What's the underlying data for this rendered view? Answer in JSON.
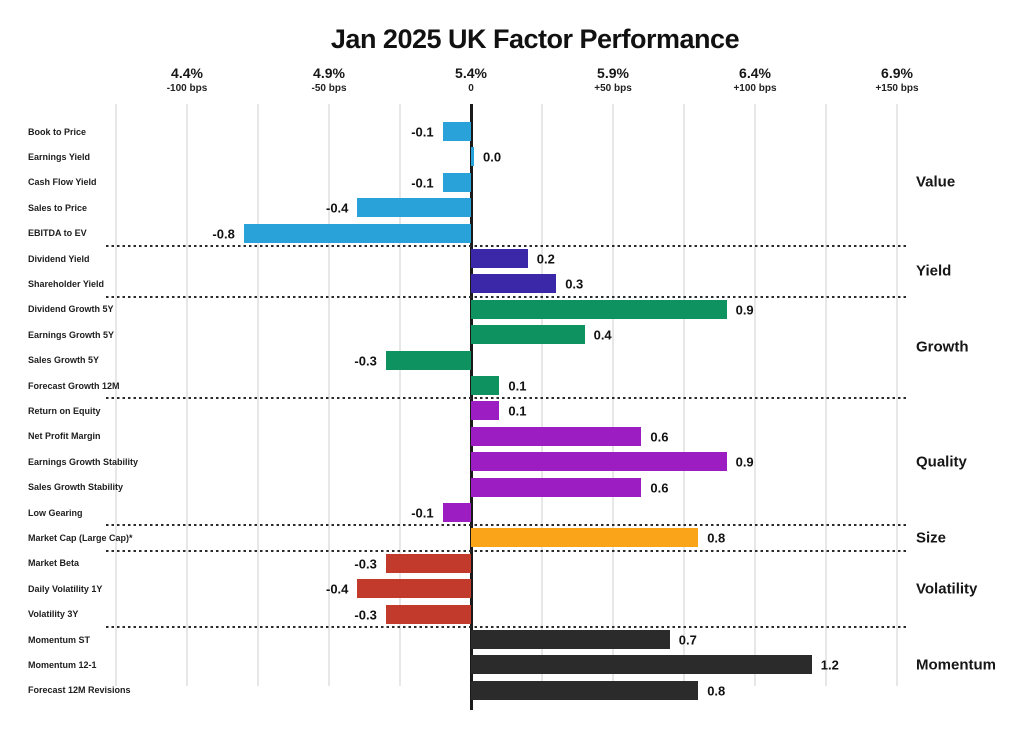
{
  "chart_data": {
    "type": "bar",
    "orientation": "horizontal",
    "title": "Jan 2025 UK Factor Performance",
    "x_axis": {
      "unit": "percent_and_bps",
      "range": [
        -1.25,
        1.75
      ],
      "minor_grid_step": 0.25,
      "grid": true,
      "ticks": [
        {
          "pct": "4.4%",
          "bps": "-100 bps",
          "value": -1.0
        },
        {
          "pct": "4.9%",
          "bps": "-50 bps",
          "value": -0.5
        },
        {
          "pct": "5.4%",
          "bps": "0",
          "value": 0.0
        },
        {
          "pct": "5.9%",
          "bps": "+50 bps",
          "value": 0.5
        },
        {
          "pct": "6.4%",
          "bps": "+100 bps",
          "value": 1.0
        },
        {
          "pct": "6.9%",
          "bps": "+150 bps",
          "value": 1.5
        }
      ]
    },
    "groups": [
      {
        "name": "Value",
        "color": "#29A2D9",
        "factors": [
          {
            "label": "Book to Price",
            "value": -0.1,
            "display": "-0.1"
          },
          {
            "label": "Earnings Yield",
            "value": 0.0,
            "display": "0.0"
          },
          {
            "label": "Cash Flow Yield",
            "value": -0.1,
            "display": "-0.1"
          },
          {
            "label": "Sales to Price",
            "value": -0.4,
            "display": "-0.4"
          },
          {
            "label": "EBITDA to EV",
            "value": -0.8,
            "display": "-0.8"
          }
        ]
      },
      {
        "name": "Yield",
        "color": "#3A28A8",
        "factors": [
          {
            "label": "Dividend Yield",
            "value": 0.2,
            "display": "0.2"
          },
          {
            "label": "Shareholder Yield",
            "value": 0.3,
            "display": "0.3"
          }
        ]
      },
      {
        "name": "Growth",
        "color": "#0D9260",
        "factors": [
          {
            "label": "Dividend Growth 5Y",
            "value": 0.9,
            "display": "0.9"
          },
          {
            "label": "Earnings Growth 5Y",
            "value": 0.4,
            "display": "0.4"
          },
          {
            "label": "Sales Growth 5Y",
            "value": -0.3,
            "display": "-0.3"
          },
          {
            "label": "Forecast Growth 12M",
            "value": 0.1,
            "display": "0.1"
          }
        ]
      },
      {
        "name": "Quality",
        "color": "#9C1EC3",
        "factors": [
          {
            "label": "Return on Equity",
            "value": 0.1,
            "display": "0.1"
          },
          {
            "label": "Net Profit Margin",
            "value": 0.6,
            "display": "0.6"
          },
          {
            "label": "Earnings Growth Stability",
            "value": 0.9,
            "display": "0.9"
          },
          {
            "label": "Sales Growth Stability",
            "value": 0.6,
            "display": "0.6"
          },
          {
            "label": "Low Gearing",
            "value": -0.1,
            "display": "-0.1"
          }
        ]
      },
      {
        "name": "Size",
        "color": "#FAA41A",
        "factors": [
          {
            "label": "Market Cap (Large Cap)*",
            "value": 0.8,
            "display": "0.8"
          }
        ]
      },
      {
        "name": "Volatility",
        "color": "#C13A2C",
        "factors": [
          {
            "label": "Market Beta",
            "value": -0.3,
            "display": "-0.3"
          },
          {
            "label": "Daily Volatility 1Y",
            "value": -0.4,
            "display": "-0.4"
          },
          {
            "label": "Volatility 3Y",
            "value": -0.3,
            "display": "-0.3"
          }
        ]
      },
      {
        "name": "Momentum",
        "color": "#2B2B2B",
        "factors": [
          {
            "label": "Momentum ST",
            "value": 0.7,
            "display": "0.7"
          },
          {
            "label": "Momentum 12-1",
            "value": 1.2,
            "display": "1.2"
          },
          {
            "label": "Forecast 12M Revisions",
            "value": 0.8,
            "display": "0.8"
          }
        ]
      }
    ]
  }
}
